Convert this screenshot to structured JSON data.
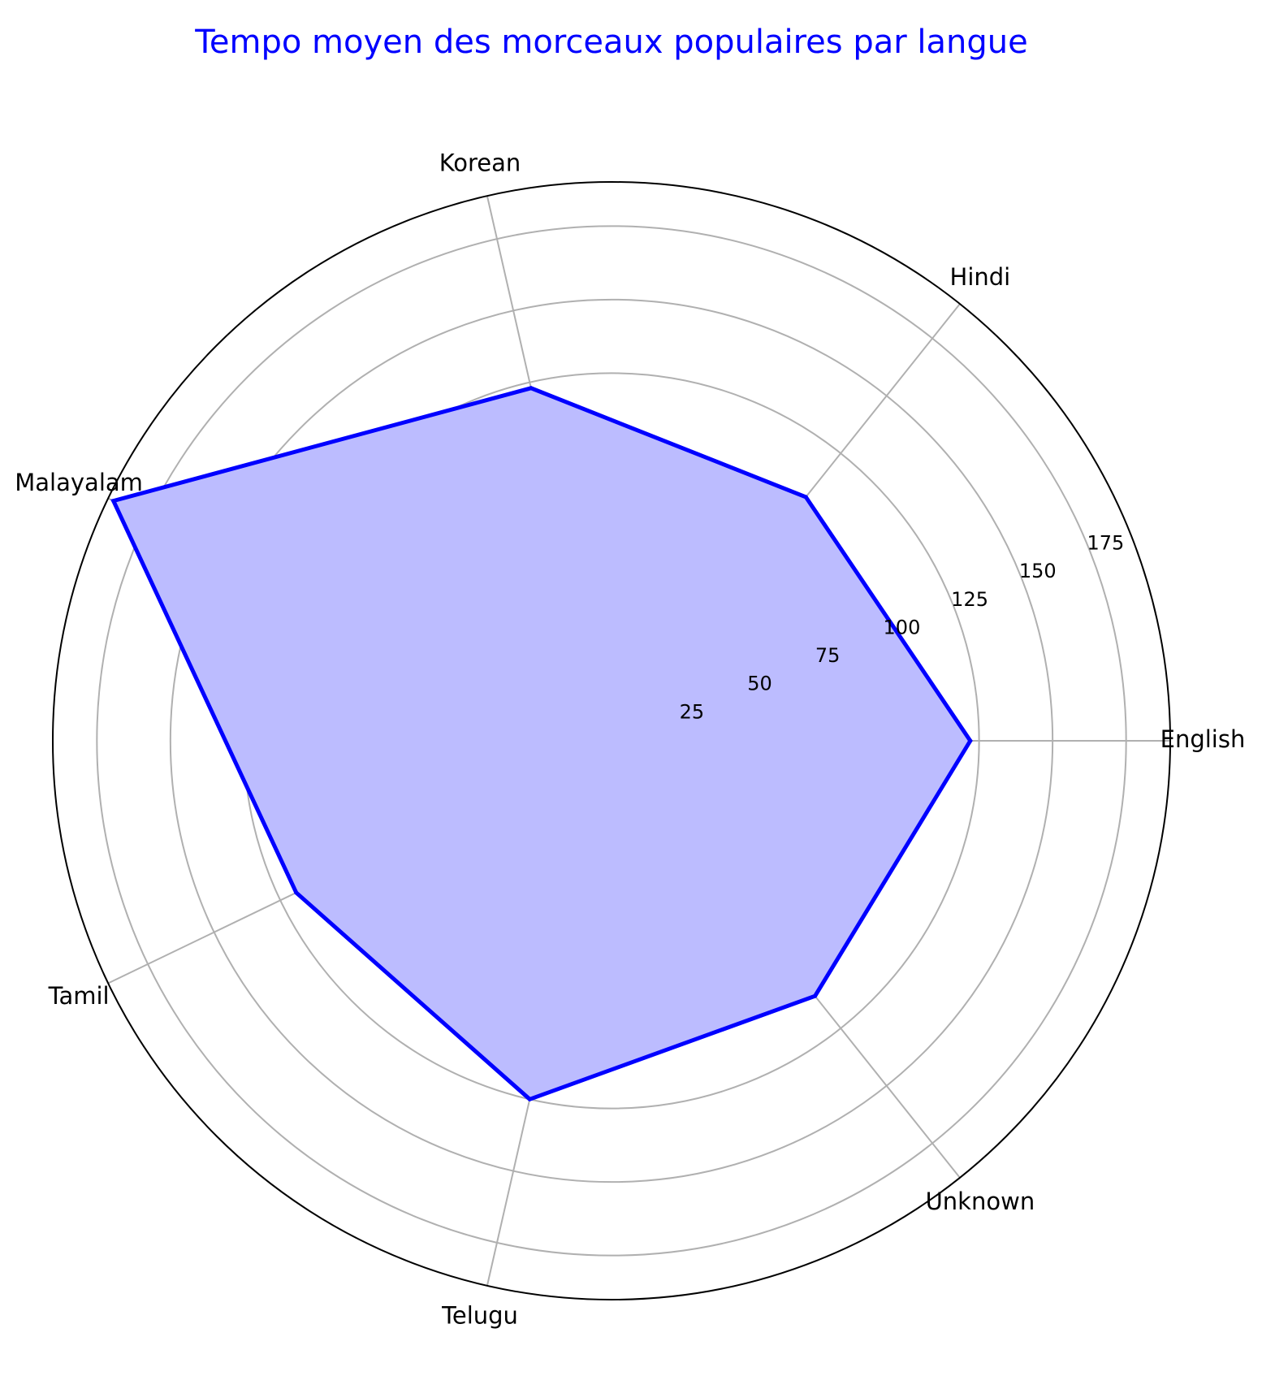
{
  "chart_data": {
    "type": "radar",
    "title": "Tempo moyen des morceaux populaires par langue",
    "categories": [
      "English",
      "Hindi",
      "Korean",
      "Malayalam",
      "Tamil",
      "Telugu",
      "Unknown"
    ],
    "series": [
      {
        "values": [
          122,
          106,
          123,
          188,
          119,
          125,
          111
        ]
      }
    ],
    "radial_ticks": [
      25,
      50,
      75,
      100,
      125,
      150,
      175
    ],
    "rlim": [
      0,
      190
    ],
    "grid": true,
    "colors": {
      "title": "#0000ff",
      "line": "#0000ff",
      "fill": "#bcbcff",
      "grid": "#b0b0b0",
      "frame": "#000000",
      "text": "#000000"
    }
  }
}
